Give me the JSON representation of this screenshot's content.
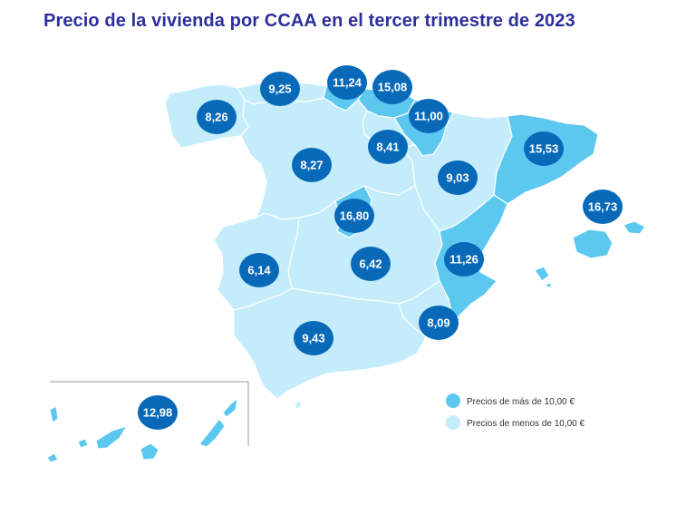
{
  "title": "Precio de la vivienda por CCAA en el tercer trimestre de 2023",
  "colors": {
    "high": "#5dc8ef",
    "low": "#c4ecfa",
    "border": "#ffffff",
    "bubble": "#0869b9",
    "title": "#2d2e9c"
  },
  "legend": {
    "high_label": "Precios de más de 10,00 €",
    "low_label": "Precios de menos de 10,00 €"
  },
  "prices": {
    "galicia": "8,26",
    "asturias": "9,25",
    "cantabria": "11,24",
    "pais_vasco": "15,08",
    "navarra": "11,00",
    "la_rioja": "8,41",
    "castilla_leon": "8,27",
    "aragon": "9,03",
    "cataluna": "15,53",
    "baleares": "16,73",
    "madrid": "16,80",
    "extremadura": "6,14",
    "castilla_la_mancha": "6,42",
    "valencia": "11,26",
    "murcia": "8,09",
    "andalucia": "9,43",
    "canarias": "12,98"
  }
}
